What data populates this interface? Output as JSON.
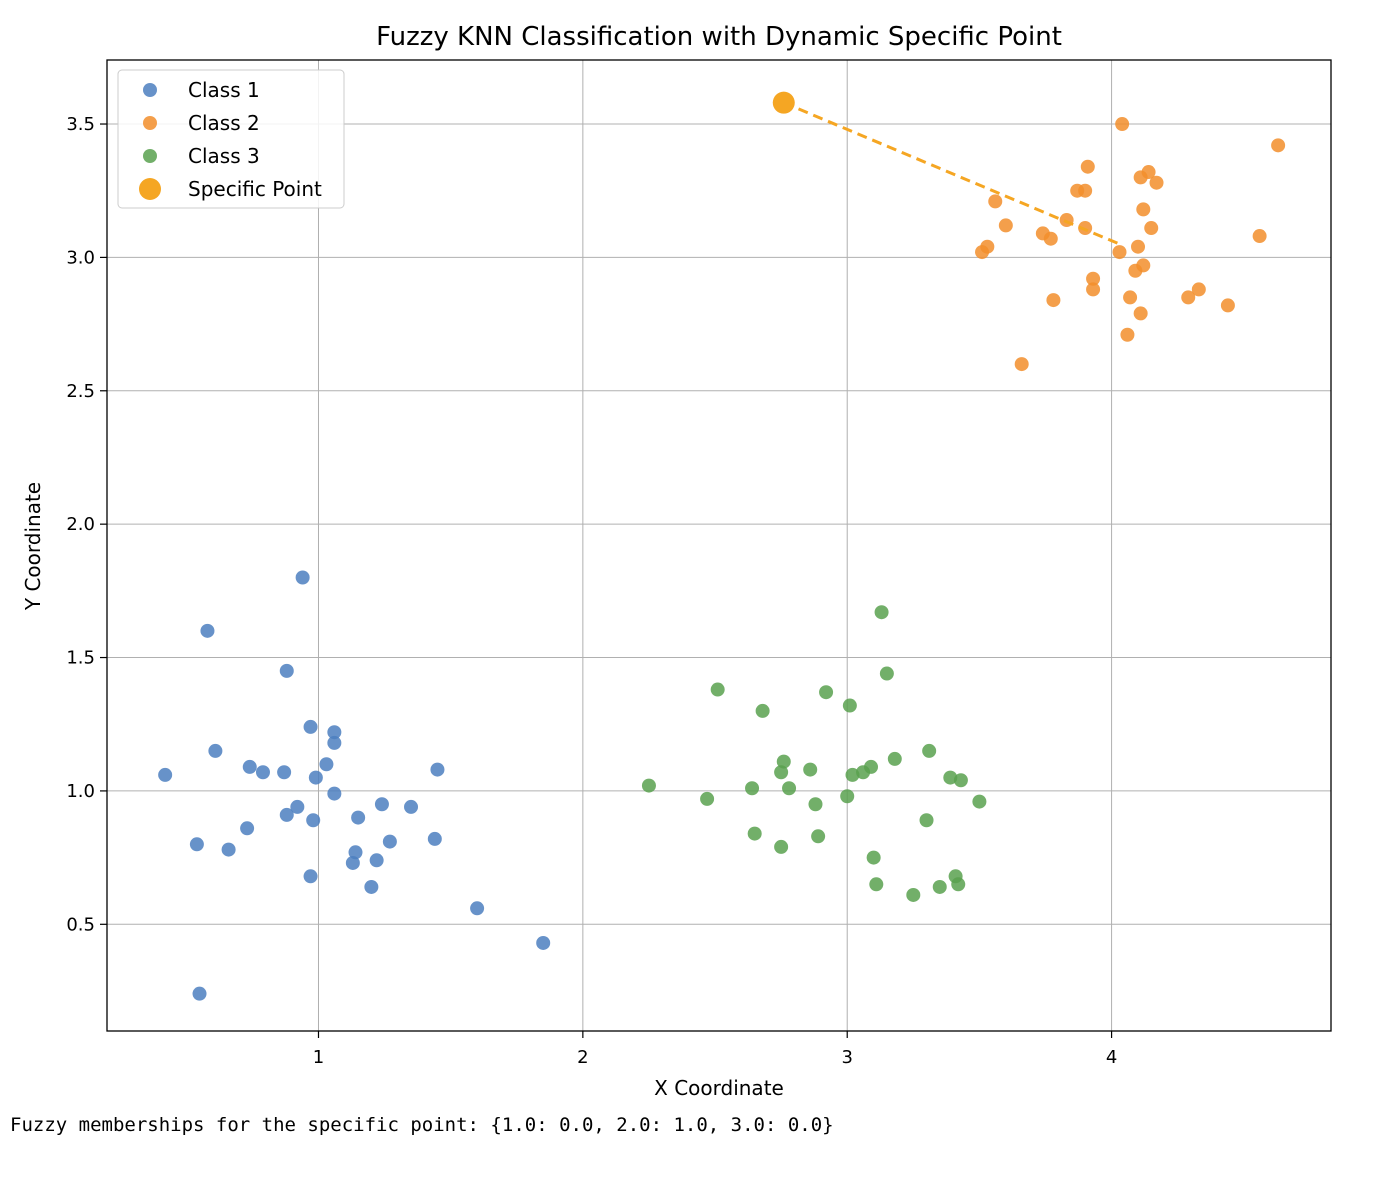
{
  "chart_data": {
    "type": "scatter",
    "title": "Fuzzy KNN Classification with Dynamic Specific Point",
    "xlabel": "X Coordinate",
    "ylabel": "Y Coordinate",
    "xlim": [
      0.2,
      4.83
    ],
    "ylim": [
      0.1,
      3.74
    ],
    "xticks": [
      1,
      2,
      3,
      4
    ],
    "xtick_labels": [
      "1",
      "2",
      "3",
      "4"
    ],
    "yticks": [
      0.5,
      1.0,
      1.5,
      2.0,
      2.5,
      3.0,
      3.5
    ],
    "ytick_labels": [
      "0.5",
      "1.0",
      "1.5",
      "2.0",
      "2.5",
      "3.0",
      "3.5"
    ],
    "grid": true,
    "legend_position": "top-left",
    "series": [
      {
        "name": "Class 1",
        "color": "#4c7fbf",
        "points": [
          [
            0.42,
            1.06
          ],
          [
            0.54,
            0.8
          ],
          [
            0.55,
            0.24
          ],
          [
            0.58,
            1.6
          ],
          [
            0.61,
            1.15
          ],
          [
            0.66,
            0.78
          ],
          [
            0.73,
            0.86
          ],
          [
            0.74,
            1.09
          ],
          [
            0.79,
            1.07
          ],
          [
            0.87,
            1.07
          ],
          [
            0.88,
            0.91
          ],
          [
            0.88,
            1.45
          ],
          [
            0.92,
            0.94
          ],
          [
            0.94,
            1.8
          ],
          [
            0.97,
            0.68
          ],
          [
            0.97,
            1.24
          ],
          [
            0.98,
            0.89
          ],
          [
            0.99,
            1.05
          ],
          [
            1.03,
            1.1
          ],
          [
            1.06,
            0.99
          ],
          [
            1.06,
            1.18
          ],
          [
            1.06,
            1.22
          ],
          [
            1.13,
            0.73
          ],
          [
            1.14,
            0.77
          ],
          [
            1.15,
            0.9
          ],
          [
            1.2,
            0.64
          ],
          [
            1.22,
            0.74
          ],
          [
            1.24,
            0.95
          ],
          [
            1.27,
            0.81
          ],
          [
            1.35,
            0.94
          ],
          [
            1.44,
            0.82
          ],
          [
            1.45,
            1.08
          ],
          [
            1.6,
            0.56
          ],
          [
            1.85,
            0.43
          ]
        ]
      },
      {
        "name": "Class 2",
        "color": "#f28e2b",
        "points": [
          [
            3.51,
            3.02
          ],
          [
            3.53,
            3.04
          ],
          [
            3.56,
            3.21
          ],
          [
            3.6,
            3.12
          ],
          [
            3.66,
            2.6
          ],
          [
            3.74,
            3.09
          ],
          [
            3.77,
            3.07
          ],
          [
            3.78,
            2.84
          ],
          [
            3.83,
            3.14
          ],
          [
            3.87,
            3.25
          ],
          [
            3.9,
            3.25
          ],
          [
            3.9,
            3.11
          ],
          [
            3.91,
            3.34
          ],
          [
            3.93,
            2.92
          ],
          [
            3.93,
            2.88
          ],
          [
            4.03,
            3.02
          ],
          [
            4.04,
            3.5
          ],
          [
            4.06,
            2.71
          ],
          [
            4.07,
            2.85
          ],
          [
            4.09,
            2.95
          ],
          [
            4.1,
            3.04
          ],
          [
            4.11,
            3.3
          ],
          [
            4.11,
            2.79
          ],
          [
            4.12,
            3.18
          ],
          [
            4.12,
            2.97
          ],
          [
            4.14,
            3.32
          ],
          [
            4.15,
            3.11
          ],
          [
            4.17,
            3.28
          ],
          [
            4.29,
            2.85
          ],
          [
            4.33,
            2.88
          ],
          [
            4.44,
            2.82
          ],
          [
            4.56,
            3.08
          ],
          [
            4.63,
            3.42
          ]
        ]
      },
      {
        "name": "Class 3",
        "color": "#59a14f",
        "points": [
          [
            2.25,
            1.02
          ],
          [
            2.47,
            0.97
          ],
          [
            2.51,
            1.38
          ],
          [
            2.64,
            1.01
          ],
          [
            2.65,
            0.84
          ],
          [
            2.68,
            1.3
          ],
          [
            2.75,
            0.79
          ],
          [
            2.75,
            1.07
          ],
          [
            2.76,
            1.11
          ],
          [
            2.78,
            1.01
          ],
          [
            2.86,
            1.08
          ],
          [
            2.88,
            0.95
          ],
          [
            2.89,
            0.83
          ],
          [
            2.92,
            1.37
          ],
          [
            3.0,
            0.98
          ],
          [
            3.01,
            1.32
          ],
          [
            3.02,
            1.06
          ],
          [
            3.06,
            1.07
          ],
          [
            3.09,
            1.09
          ],
          [
            3.1,
            0.75
          ],
          [
            3.11,
            0.65
          ],
          [
            3.13,
            1.67
          ],
          [
            3.15,
            1.44
          ],
          [
            3.18,
            1.12
          ],
          [
            3.25,
            0.61
          ],
          [
            3.3,
            0.89
          ],
          [
            3.31,
            1.15
          ],
          [
            3.35,
            0.64
          ],
          [
            3.39,
            1.05
          ],
          [
            3.41,
            0.68
          ],
          [
            3.42,
            0.65
          ],
          [
            3.43,
            1.04
          ],
          [
            3.5,
            0.96
          ]
        ]
      }
    ],
    "specific_point": {
      "name": "Specific Point",
      "color": "#f5a623",
      "x": 2.76,
      "y": 3.58
    },
    "connector": {
      "color": "#f5a623",
      "from": [
        2.76,
        3.58
      ],
      "to": [
        4.03,
        3.05
      ]
    }
  },
  "output": {
    "text": "Fuzzy memberships for the specific point: {1.0: 0.0, 2.0: 1.0, 3.0: 0.0}"
  }
}
